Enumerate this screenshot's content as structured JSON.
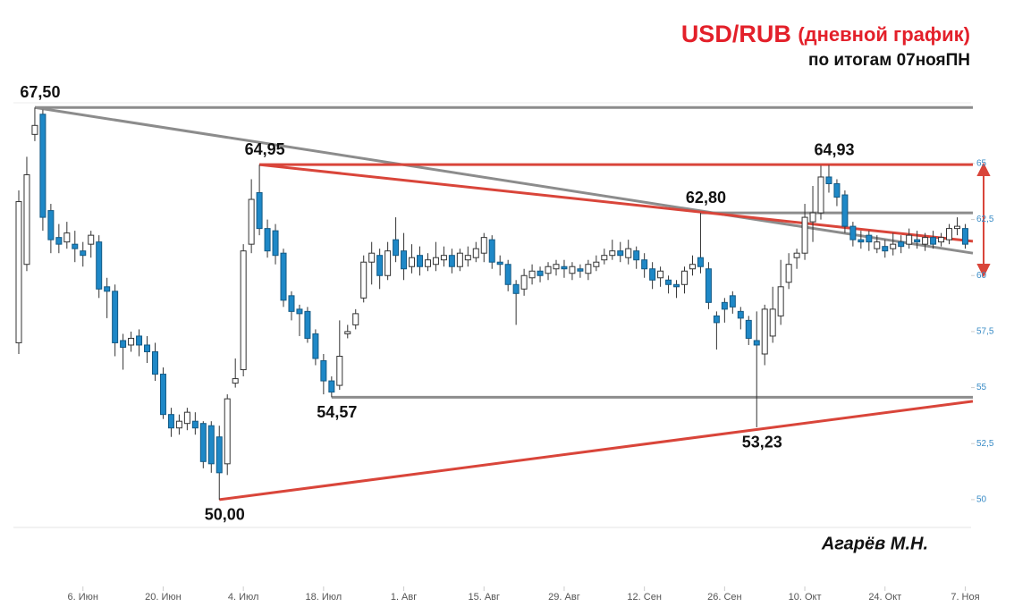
{
  "chart_data": {
    "type": "candlestick",
    "title": "USD/RUB",
    "title_note": "(дневной график)",
    "subtitle": "по итогам 07нояПН",
    "author": "Агарёв М.Н.",
    "up_color": "#ffffff",
    "down_color": "#1e88c7",
    "categories": [
      null,
      null,
      null,
      null,
      null,
      null,
      null,
      null,
      "6. Июн",
      null,
      null,
      null,
      null,
      null,
      null,
      null,
      null,
      null,
      "20. Июн",
      null,
      null,
      null,
      null,
      null,
      null,
      null,
      null,
      null,
      "4. Июл",
      null,
      null,
      null,
      null,
      null,
      null,
      null,
      null,
      null,
      "18. Июл",
      null,
      null,
      null,
      null,
      null,
      null,
      null,
      null,
      null,
      "1. Авг",
      null,
      null,
      null,
      null,
      null,
      null,
      null,
      null,
      null,
      "15. Авг",
      null,
      null,
      null,
      null,
      null,
      null,
      null,
      null,
      null,
      "29. Авг",
      null,
      null,
      null,
      null,
      null,
      null,
      null,
      null,
      null,
      "12. Сен",
      null,
      null,
      null,
      null,
      null,
      null,
      null,
      null,
      null,
      "26. Сен",
      null,
      null,
      null,
      null,
      null,
      null,
      null,
      null,
      null,
      "10. Окт",
      null,
      null,
      null,
      null,
      null,
      null,
      null,
      null,
      null,
      "24. Окт",
      null,
      null,
      null,
      null,
      null,
      null,
      null,
      null,
      null,
      "7. Ноя"
    ],
    "open": [
      57.0,
      60.5,
      66.3,
      67.2,
      62.9,
      61.7,
      61.5,
      61.4,
      61.1,
      61.4,
      61.5,
      59.5,
      59.3,
      57.1,
      56.9,
      57.3,
      56.9,
      56.6,
      55.6,
      53.8,
      53.2,
      53.4,
      53.5,
      53.4,
      53.3,
      52.8,
      51.6,
      55.2,
      55.8,
      61.4,
      63.7,
      62.1,
      62.0,
      61.0,
      59.1,
      58.5,
      58.4,
      57.4,
      56.2,
      55.3,
      55.1,
      57.4,
      57.8,
      59.0,
      60.6,
      60.9,
      60.0,
      61.6,
      61.1,
      60.4,
      60.9,
      60.4,
      60.5,
      60.7,
      60.9,
      60.4,
      60.7,
      60.8,
      61.0,
      61.6,
      60.6,
      60.5,
      59.6,
      59.4,
      59.9,
      60.2,
      60.1,
      60.3,
      60.4,
      60.1,
      60.3,
      60.1,
      60.4,
      60.7,
      60.9,
      61.1,
      60.8,
      61.1,
      60.7,
      60.3,
      59.9,
      59.8,
      59.6,
      59.6,
      60.3,
      60.8,
      60.3,
      58.2,
      58.8,
      59.1,
      58.4,
      58.0,
      57.1,
      56.5,
      57.3,
      58.2,
      59.7,
      60.8,
      61.0,
      62.4,
      62.8,
      64.4,
      64.1,
      63.6,
      62.2,
      61.6,
      61.8,
      61.2,
      61.3,
      61.2,
      61.5,
      61.4,
      61.6,
      61.4,
      61.7,
      61.5,
      61.6,
      62.1,
      62.1
    ],
    "high": [
      63.8,
      65.3,
      67.5,
      67.4,
      63.2,
      62.3,
      62.4,
      62.0,
      61.5,
      62.0,
      61.8,
      59.9,
      59.6,
      57.4,
      57.5,
      57.6,
      57.3,
      57.0,
      55.9,
      54.1,
      53.8,
      54.1,
      53.9,
      53.5,
      53.5,
      53.3,
      54.7,
      56.3,
      61.4,
      64.3,
      64.95,
      62.5,
      62.3,
      61.2,
      59.3,
      58.7,
      58.6,
      57.6,
      56.5,
      55.5,
      58.0,
      57.8,
      58.5,
      60.9,
      61.5,
      61.2,
      61.5,
      62.6,
      61.9,
      61.4,
      61.3,
      61.0,
      61.5,
      61.3,
      61.2,
      61.2,
      61.3,
      61.5,
      61.9,
      61.8,
      60.9,
      60.7,
      59.8,
      60.3,
      60.5,
      60.4,
      60.6,
      60.7,
      60.7,
      60.6,
      60.5,
      60.7,
      60.9,
      61.2,
      61.6,
      61.5,
      61.6,
      61.3,
      61.0,
      60.6,
      60.4,
      60.0,
      59.8,
      60.4,
      60.9,
      62.8,
      60.6,
      58.4,
      59.0,
      59.3,
      58.6,
      58.2,
      58.4,
      58.7,
      59.5,
      60.7,
      61.0,
      61.2,
      63.2,
      64.0,
      64.9,
      64.93,
      64.3,
      63.8,
      62.4,
      62.0,
      62.0,
      61.8,
      61.6,
      61.9,
      61.8,
      62.1,
      62.0,
      61.9,
      62.0,
      61.9,
      62.3,
      62.6,
      62.3
    ],
    "low": [
      56.5,
      60.2,
      66.0,
      62.0,
      61.0,
      61.0,
      61.2,
      60.6,
      60.4,
      60.8,
      59.0,
      58.1,
      56.4,
      55.8,
      56.6,
      56.4,
      56.1,
      55.3,
      53.6,
      52.8,
      52.9,
      53.1,
      52.9,
      51.4,
      51.2,
      50.0,
      51.1,
      55.0,
      55.5,
      61.0,
      61.8,
      60.8,
      60.5,
      58.6,
      58.0,
      57.3,
      57.0,
      56.0,
      54.7,
      54.57,
      54.9,
      57.2,
      57.6,
      58.8,
      59.6,
      59.4,
      59.8,
      60.6,
      59.8,
      60.1,
      60.0,
      60.2,
      60.2,
      60.4,
      60.1,
      60.2,
      60.4,
      60.6,
      60.6,
      60.3,
      60.0,
      59.3,
      57.8,
      59.1,
      59.6,
      59.7,
      59.8,
      60.0,
      59.9,
      59.8,
      59.9,
      59.8,
      60.2,
      60.5,
      60.7,
      60.6,
      60.5,
      60.3,
      59.9,
      59.4,
      59.5,
      59.2,
      59.0,
      59.2,
      60.0,
      60.1,
      58.5,
      56.7,
      57.9,
      58.3,
      57.6,
      56.9,
      53.23,
      56.0,
      57.0,
      57.8,
      59.4,
      60.3,
      60.7,
      61.5,
      62.5,
      63.7,
      63.1,
      61.9,
      61.3,
      61.2,
      61.1,
      61.0,
      60.8,
      60.9,
      61.0,
      61.2,
      61.2,
      61.1,
      61.2,
      61.3,
      61.4,
      61.8,
      61.2
    ],
    "close": [
      63.3,
      64.5,
      66.7,
      62.6,
      61.6,
      61.4,
      61.9,
      61.2,
      60.9,
      61.8,
      59.4,
      59.3,
      57.0,
      56.8,
      57.2,
      56.9,
      56.6,
      55.6,
      53.8,
      53.2,
      53.5,
      53.9,
      53.2,
      51.7,
      51.6,
      51.2,
      54.5,
      55.4,
      61.1,
      63.4,
      62.1,
      61.1,
      60.9,
      58.9,
      58.4,
      58.3,
      57.2,
      56.3,
      55.3,
      54.8,
      56.4,
      57.5,
      58.3,
      60.6,
      61.0,
      60.0,
      61.1,
      60.9,
      60.3,
      60.8,
      60.4,
      60.7,
      60.8,
      60.9,
      60.4,
      61.0,
      60.9,
      61.2,
      61.7,
      60.6,
      60.5,
      59.6,
      59.2,
      60.0,
      60.2,
      60.0,
      60.4,
      60.5,
      60.3,
      60.4,
      60.2,
      60.5,
      60.6,
      60.9,
      61.1,
      60.9,
      61.2,
      60.7,
      60.3,
      59.8,
      60.2,
      59.6,
      59.5,
      60.2,
      60.5,
      60.4,
      58.8,
      57.9,
      58.5,
      58.6,
      58.1,
      57.2,
      56.9,
      58.5,
      58.5,
      59.5,
      60.5,
      61.0,
      62.6,
      62.8,
      64.4,
      64.1,
      63.5,
      62.2,
      61.6,
      61.5,
      61.5,
      61.5,
      61.1,
      61.4,
      61.3,
      61.8,
      61.5,
      61.7,
      61.4,
      61.7,
      62.1,
      62.2,
      61.4
    ],
    "ylim": [
      48.76,
      67.71
    ],
    "yticks": [
      50,
      {
        "value": 52.5,
        "label": "52,5"
      },
      55,
      {
        "value": 57.5,
        "label": "57,5"
      },
      60,
      {
        "value": 62.5,
        "label": "62,5"
      },
      65
    ],
    "annotations": [
      {
        "value": 67.5,
        "label": "67,50",
        "at": "high"
      },
      {
        "value": 64.95,
        "label": "64,95",
        "at": "high"
      },
      {
        "value": 54.57,
        "label": "54,57",
        "at": "low"
      },
      {
        "value": 50.0,
        "label": "50,00",
        "at": "low"
      },
      {
        "value": 62.8,
        "label": "62,80",
        "at": "high"
      },
      {
        "value": 53.23,
        "label": "53,23",
        "at": "low"
      },
      {
        "value": 64.93,
        "label": "64,93",
        "at": "high"
      }
    ],
    "trendlines": [
      {
        "color": "#8c8c8c",
        "start": 67.5,
        "end": 67.5,
        "at": "high"
      },
      {
        "color": "#8c8c8c",
        "start": 67.5,
        "end": 61.0,
        "at": "high"
      },
      {
        "color": "#8c8c8c",
        "start": 62.8,
        "end": 62.8,
        "at": "high"
      },
      {
        "color": "#8c8c8c",
        "start": 54.57,
        "end": 54.57,
        "at": "low"
      },
      {
        "color": "#d9453a",
        "start": 64.95,
        "end": 64.95,
        "at": "high"
      },
      {
        "color": "#d9453a",
        "start": 64.95,
        "end": 61.53,
        "at": "high"
      },
      {
        "color": "#d9453a",
        "start": 50.0,
        "end": 54.39,
        "at": "low"
      }
    ]
  }
}
